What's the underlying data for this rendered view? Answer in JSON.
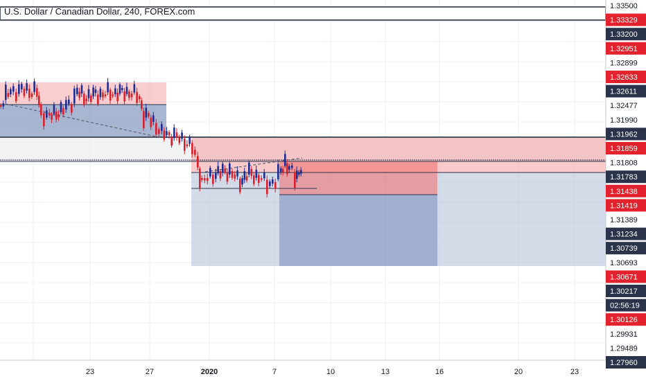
{
  "header": {
    "title": "U.S. Dollar / Canadian Dollar, 240, FOREX.com"
  },
  "chart_data": {
    "type": "candlestick",
    "title": "U.S. Dollar / Canadian Dollar, 240, FOREX.com",
    "y_axis": {
      "tick_labels": [
        {
          "value": 1.335,
          "label": "1.33500",
          "style": "plain"
        },
        {
          "value": 1.33329,
          "label": "1.33329",
          "style": "red"
        },
        {
          "value": 1.332,
          "label": "1.33200",
          "style": "dark"
        },
        {
          "value": 1.32951,
          "label": "1.32951",
          "style": "red"
        },
        {
          "value": 1.32899,
          "label": "1.32899",
          "style": "plain"
        },
        {
          "value": 1.32633,
          "label": "1.32633",
          "style": "red"
        },
        {
          "value": 1.32611,
          "label": "1.32611",
          "style": "dark"
        },
        {
          "value": 1.32477,
          "label": "1.32477",
          "style": "plain"
        },
        {
          "value": 1.3199,
          "label": "1.31990",
          "style": "plain"
        },
        {
          "value": 1.31962,
          "label": "1.31962",
          "style": "dark"
        },
        {
          "value": 1.31859,
          "label": "1.31859",
          "style": "red"
        },
        {
          "value": 1.31808,
          "label": "1.31808",
          "style": "plain"
        },
        {
          "value": 1.31783,
          "label": "1.31783",
          "style": "dark"
        },
        {
          "value": 1.31438,
          "label": "1.31438",
          "style": "red"
        },
        {
          "value": 1.31419,
          "label": "1.31419",
          "style": "red"
        },
        {
          "value": 1.31389,
          "label": "1.31389",
          "style": "plain"
        },
        {
          "value": 1.31234,
          "label": "1.31234",
          "style": "dark"
        },
        {
          "value": 1.30739,
          "label": "1.30739",
          "style": "dark"
        },
        {
          "value": 1.30693,
          "label": "1.30693",
          "style": "plain"
        },
        {
          "value": 1.30671,
          "label": "1.30671",
          "style": "red"
        },
        {
          "value": 1.30217,
          "label": "1.30217",
          "style": "dark"
        },
        {
          "value": null,
          "label": "02:56:19",
          "style": "dark"
        },
        {
          "value": 1.30126,
          "label": "1.30126",
          "style": "red"
        },
        {
          "value": 1.29931,
          "label": "1.29931",
          "style": "plain"
        },
        {
          "value": 1.29489,
          "label": "1.29489",
          "style": "plain"
        },
        {
          "value": 1.2796,
          "label": "1.27960",
          "style": "dark"
        }
      ]
    },
    "x_axis": {
      "tick_labels": [
        {
          "label": "23",
          "bold": false
        },
        {
          "label": "27",
          "bold": false
        },
        {
          "label": "2020",
          "bold": true
        },
        {
          "label": "7",
          "bold": false
        },
        {
          "label": "10",
          "bold": false
        },
        {
          "label": "13",
          "bold": false
        },
        {
          "label": "16",
          "bold": false
        },
        {
          "label": "20",
          "bold": false
        },
        {
          "label": "23",
          "bold": false
        }
      ]
    },
    "grid": true,
    "colors": {
      "up": "#1e2b8f",
      "down": "#d8202c",
      "label_red": "#e3222d",
      "label_dark": "#2a3349",
      "stop_zone": "#f4a6a6",
      "target_zone": "#aab8d2"
    }
  }
}
